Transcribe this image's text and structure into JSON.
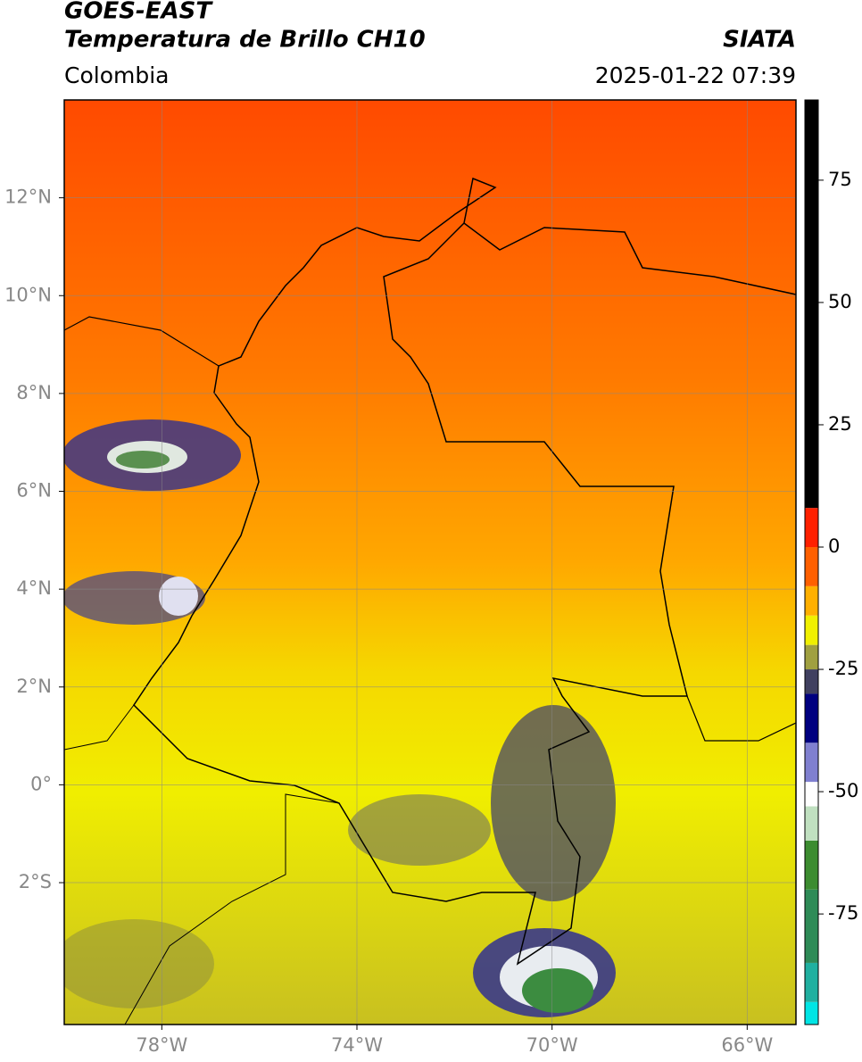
{
  "header": {
    "title_1": "GOES-EAST",
    "title_2": "Temperatura de Brillo CH10",
    "region": "Colombia",
    "source": "SIATA",
    "datetime": "2025-01-22 07:39"
  },
  "map": {
    "xlim": [
      -80,
      -65
    ],
    "ylim": [
      -4.9,
      14
    ],
    "xticks": [
      {
        "value": -78,
        "label": "78°W"
      },
      {
        "value": -74,
        "label": "74°W"
      },
      {
        "value": -70,
        "label": "70°W"
      },
      {
        "value": -66,
        "label": "66°W"
      }
    ],
    "yticks": [
      {
        "value": 12,
        "label": "12°N"
      },
      {
        "value": 10,
        "label": "10°N"
      },
      {
        "value": 8,
        "label": "8°N"
      },
      {
        "value": 6,
        "label": "6°N"
      },
      {
        "value": 4,
        "label": "4°N"
      },
      {
        "value": 2,
        "label": "2°N"
      },
      {
        "value": 0,
        "label": "0°"
      },
      {
        "value": -2,
        "label": "2°S"
      }
    ],
    "grid": true
  },
  "colorbar": {
    "lim": [
      -97.6,
      91.4
    ],
    "ticks": [
      75,
      50,
      25,
      0,
      -25,
      -50,
      -75
    ],
    "colormap": [
      {
        "value": -97.6,
        "color": "#ffffff"
      },
      {
        "value": -93,
        "color": "#00e5e5"
      },
      {
        "value": -85,
        "color": "#20b0a0"
      },
      {
        "value": -70,
        "color": "#2e8b57"
      },
      {
        "value": -60,
        "color": "#3c8c30"
      },
      {
        "value": -53,
        "color": "#c0e0c0"
      },
      {
        "value": -48,
        "color": "#ffffff"
      },
      {
        "value": -40,
        "color": "#8080d0"
      },
      {
        "value": -30,
        "color": "#000080"
      },
      {
        "value": -25,
        "color": "#404060"
      },
      {
        "value": -20,
        "color": "#a0a040"
      },
      {
        "value": -14,
        "color": "#f0f000"
      },
      {
        "value": -8,
        "color": "#ffb000"
      },
      {
        "value": 0,
        "color": "#ff6000"
      },
      {
        "value": 8,
        "color": "#ff2000"
      },
      {
        "value": 91.4,
        "color": "#000000"
      }
    ]
  }
}
